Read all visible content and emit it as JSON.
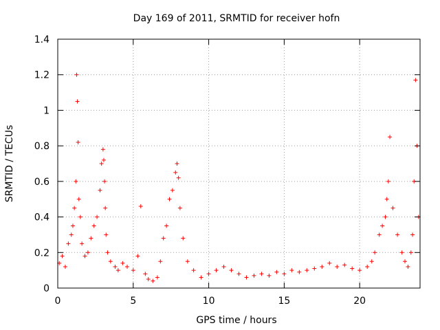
{
  "chart_data": {
    "type": "scatter",
    "title": "Day 169 of 2011, SRMTID for receiver hofn",
    "xlabel": "GPS time / hours",
    "ylabel": "SRMTID / TECUs",
    "xlim": [
      0,
      24
    ],
    "ylim": [
      0,
      1.4
    ],
    "xticks": [
      0,
      5,
      10,
      15,
      20
    ],
    "xtick_labels": [
      "0",
      "5",
      "10",
      "15",
      "20"
    ],
    "yticks": [
      0,
      0.2,
      0.4,
      0.6,
      0.8,
      1,
      1.2,
      1.4
    ],
    "ytick_labels": [
      "0",
      "0.2",
      "0.4",
      "0.6",
      "0.8",
      "1",
      "1.2",
      "1.4"
    ],
    "grid": true,
    "marker": "+",
    "series": [
      {
        "name": "SRMTID",
        "color": "#ff0000",
        "x": [
          0.1,
          0.3,
          0.5,
          0.7,
          0.9,
          1.0,
          1.1,
          1.2,
          1.25,
          1.3,
          1.35,
          1.4,
          1.5,
          1.6,
          1.8,
          2.0,
          2.2,
          2.4,
          2.6,
          2.8,
          2.9,
          3.0,
          3.05,
          3.1,
          3.15,
          3.2,
          3.3,
          3.5,
          3.8,
          4.0,
          4.3,
          4.6,
          5.0,
          5.3,
          5.5,
          5.8,
          6.0,
          6.3,
          6.6,
          6.8,
          7.0,
          7.2,
          7.4,
          7.6,
          7.8,
          7.9,
          8.0,
          8.1,
          8.3,
          8.6,
          9.0,
          9.5,
          10.0,
          10.5,
          11.0,
          11.5,
          12.0,
          12.5,
          13.0,
          13.5,
          14.0,
          14.5,
          15.0,
          15.5,
          16.0,
          16.5,
          17.0,
          17.5,
          18.0,
          18.5,
          19.0,
          19.5,
          20.0,
          20.5,
          20.8,
          21.0,
          21.3,
          21.5,
          21.7,
          21.8,
          21.9,
          22.0,
          22.2,
          22.5,
          22.8,
          23.0,
          23.2,
          23.4,
          23.5,
          23.6,
          23.7,
          23.8,
          23.9
        ],
        "y": [
          0.14,
          0.18,
          0.12,
          0.25,
          0.3,
          0.35,
          0.45,
          0.6,
          1.2,
          1.05,
          0.82,
          0.5,
          0.4,
          0.25,
          0.18,
          0.2,
          0.28,
          0.35,
          0.4,
          0.55,
          0.7,
          0.78,
          0.72,
          0.6,
          0.45,
          0.3,
          0.2,
          0.15,
          0.12,
          0.1,
          0.14,
          0.12,
          0.1,
          0.18,
          0.46,
          0.08,
          0.05,
          0.04,
          0.06,
          0.15,
          0.28,
          0.35,
          0.5,
          0.55,
          0.65,
          0.7,
          0.62,
          0.45,
          0.28,
          0.15,
          0.1,
          0.06,
          0.08,
          0.1,
          0.12,
          0.1,
          0.08,
          0.06,
          0.07,
          0.08,
          0.07,
          0.09,
          0.08,
          0.1,
          0.09,
          0.1,
          0.11,
          0.12,
          0.14,
          0.12,
          0.13,
          0.11,
          0.1,
          0.12,
          0.15,
          0.2,
          0.3,
          0.35,
          0.4,
          0.5,
          0.6,
          0.85,
          0.45,
          0.3,
          0.2,
          0.15,
          0.12,
          0.2,
          0.3,
          0.6,
          1.17,
          0.8,
          0.4
        ]
      }
    ]
  }
}
